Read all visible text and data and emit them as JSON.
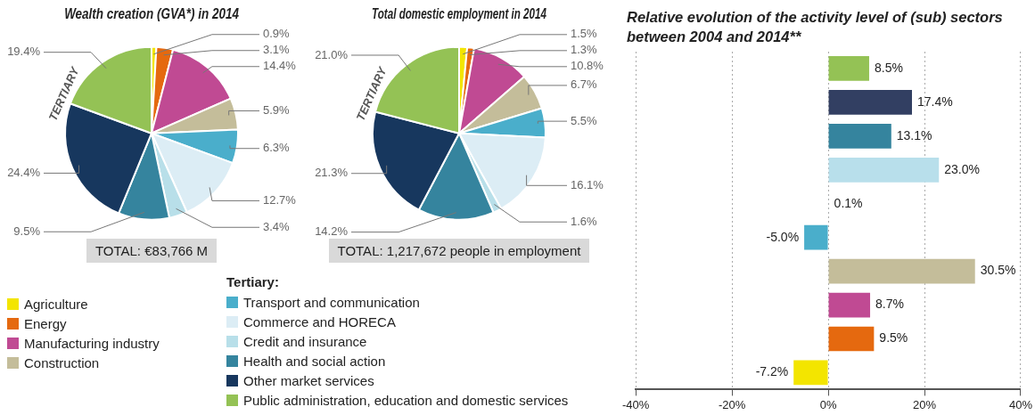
{
  "chart_data": [
    {
      "type": "pie",
      "title": "Wealth creation (GVA*) in 2014",
      "categories": [
        "Agriculture",
        "Energy",
        "Manufacturing industry",
        "Construction",
        "Transport and communication",
        "Commerce and HORECA",
        "Credit and insurance",
        "Health and social action",
        "Other market services",
        "Public administration, education and domestic services"
      ],
      "values": [
        0.9,
        3.1,
        14.4,
        5.9,
        6.3,
        12.7,
        3.4,
        9.5,
        24.4,
        19.4
      ],
      "value_labels": [
        "0.9%",
        "3.1%",
        "14.4%",
        "5.9%",
        "6.3%",
        "12.7%",
        "3.4%",
        "9.5%",
        "24.4%",
        "19.4%"
      ],
      "colors": [
        "#f3e500",
        "#e5690f",
        "#c04a93",
        "#c4bd9a",
        "#4aaecb",
        "#dcedf5",
        "#b8dfe9",
        "#35849e",
        "#17375e",
        "#94c255"
      ],
      "legend": "bottom",
      "legend_title": "Tertiary:",
      "annotations": [
        "TERTIARY",
        "TOTAL: €83,766 M"
      ]
    },
    {
      "type": "pie",
      "title": "Total domestic employment in 2014",
      "categories": [
        null,
        null,
        null,
        null,
        null,
        null,
        null,
        null,
        null,
        null
      ],
      "values": [
        1.5,
        1.3,
        10.8,
        6.7,
        5.5,
        16.1,
        1.6,
        14.2,
        21.3,
        21.0
      ],
      "value_labels": [
        "1.5%",
        "1.3%",
        "10.8%",
        "6.7%",
        "5.5%",
        "16.1%",
        "1.6%",
        "14.2%",
        "21.3%",
        "21.0%"
      ],
      "colors": [
        "#f3e500",
        "#e5690f",
        "#c04a93",
        "#c4bd9a",
        "#4aaecb",
        "#dcedf5",
        "#b8dfe9",
        "#35849e",
        "#17375e",
        "#94c255"
      ],
      "annotations": [
        "TERTIARY",
        "TOTAL: 1,217,672 people in employment"
      ]
    },
    {
      "type": "bar",
      "orientation": "horizontal",
      "title": "Relative evolution of the activity level of (sub) sectors between 2004 and 2014**",
      "categories": [
        null,
        null,
        null,
        null,
        null,
        null,
        null,
        null,
        null,
        null
      ],
      "values": [
        8.5,
        17.4,
        13.1,
        23.0,
        0.1,
        -5.0,
        30.5,
        8.7,
        9.5,
        -7.2
      ],
      "value_labels": [
        "8.5%",
        "17.4%",
        "13.1%",
        "23.0%",
        "0.1%",
        "-5.0%",
        "30.5%",
        "8.7%",
        "9.5%",
        "-7.2%"
      ],
      "colors": [
        "#94c255",
        "#323f62",
        "#35849e",
        "#b8dfeb",
        "#b8dfeb",
        "#4aaecb",
        "#c4bd9a",
        "#c04a93",
        "#e5690f",
        "#f3e500"
      ],
      "xlim": [
        -40,
        40
      ],
      "xticks": [
        {
          "value": -40,
          "label": "-40%"
        },
        {
          "value": -20,
          "label": "-20%"
        },
        {
          "value": 0,
          "label": "0%"
        },
        {
          "value": 20,
          "label": "20%"
        },
        {
          "value": 40,
          "label": "40%"
        }
      ],
      "grid": "x"
    }
  ]
}
